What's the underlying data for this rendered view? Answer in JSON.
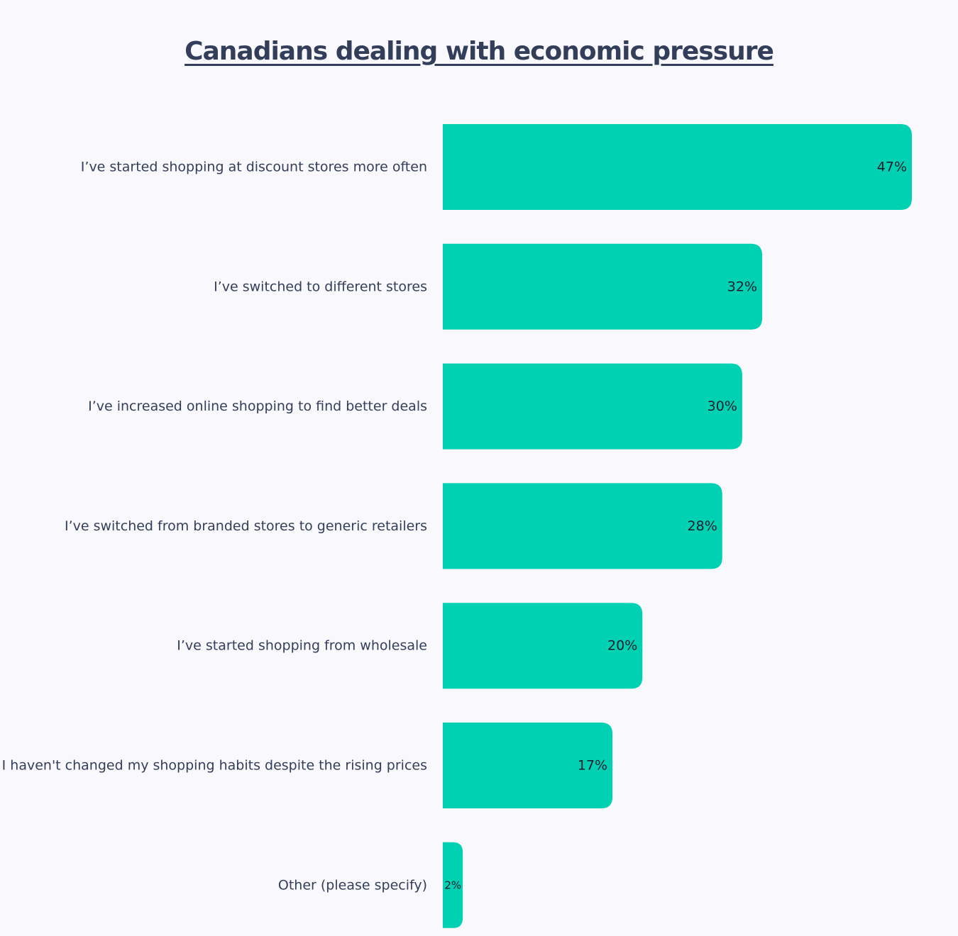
{
  "title": "Canadians dealing with economic pressure",
  "colors": {
    "bar": "#00d1b2",
    "background": "#f9f8fd",
    "text": "#333e5a"
  },
  "chart_data": {
    "type": "bar",
    "orientation": "horizontal",
    "title": "Canadians dealing with economic pressure",
    "xlabel": "",
    "ylabel": "",
    "grid": false,
    "xlim": [
      0,
      47
    ],
    "categories": [
      "I’ve started shopping at discount stores more often",
      "I’ve switched to different stores",
      "I’ve increased online shopping to find better deals",
      "I’ve switched from branded stores to generic retailers",
      "I’ve started shopping from wholesale",
      "I haven't changed my shopping habits despite the rising prices",
      "Other (please specify)"
    ],
    "values": [
      47,
      32,
      30,
      28,
      20,
      17,
      2
    ],
    "value_labels": [
      "47%",
      "32%",
      "30%",
      "28%",
      "20%",
      "17%",
      "2%"
    ]
  }
}
